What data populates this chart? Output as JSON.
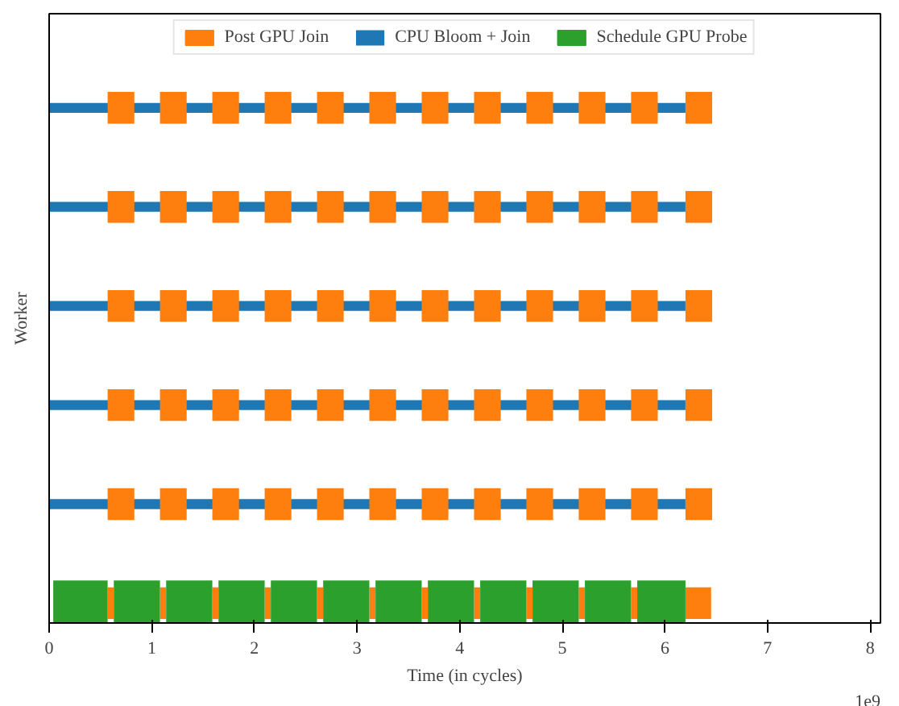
{
  "chart_data": {
    "type": "bar",
    "orientation": "horizontal",
    "xlabel": "Time (in cycles)",
    "ylabel": "Worker",
    "categories": [
      null,
      null,
      null,
      null,
      null,
      null
    ],
    "xlim": [
      0,
      8.1
    ],
    "xticks": [
      0,
      1,
      2,
      3,
      4,
      5,
      6,
      7,
      8
    ],
    "tick_labels": "x",
    "grid": false,
    "legend": "top",
    "annotations": [
      "1e9"
    ],
    "series": [
      {
        "name": "Post GPU Join",
        "color": "#ff7f0e",
        "base": [
          0.57,
          0.57,
          0.57,
          0.57,
          0.57,
          0.57
        ],
        "values": [
          0.26,
          0.26,
          0.26,
          0.26,
          0.26,
          0.06
        ]
      },
      {
        "color": "#ff7f0e",
        "base": [
          1.08,
          1.08,
          1.08,
          1.08,
          1.08,
          1.08
        ],
        "values": [
          0.26,
          0.26,
          0.26,
          0.26,
          0.26,
          0.06
        ]
      },
      {
        "color": "#ff7f0e",
        "base": [
          1.59,
          1.59,
          1.59,
          1.59,
          1.59,
          1.59
        ],
        "values": [
          0.26,
          0.26,
          0.26,
          0.26,
          0.26,
          0.06
        ]
      },
      {
        "color": "#ff7f0e",
        "base": [
          2.1,
          2.1,
          2.1,
          2.1,
          2.1,
          2.1
        ],
        "values": [
          0.26,
          0.26,
          0.26,
          0.26,
          0.26,
          0.06
        ]
      },
      {
        "color": "#ff7f0e",
        "base": [
          2.61,
          2.61,
          2.61,
          2.61,
          2.61,
          2.61
        ],
        "values": [
          0.26,
          0.26,
          0.26,
          0.26,
          0.26,
          0.06
        ]
      },
      {
        "color": "#ff7f0e",
        "base": [
          3.12,
          3.12,
          3.12,
          3.12,
          3.12,
          3.12
        ],
        "values": [
          0.26,
          0.26,
          0.26,
          0.26,
          0.26,
          0.06
        ]
      },
      {
        "color": "#ff7f0e",
        "base": [
          3.63,
          3.63,
          3.63,
          3.63,
          3.63,
          3.63
        ],
        "values": [
          0.26,
          0.26,
          0.26,
          0.26,
          0.26,
          0.06
        ]
      },
      {
        "color": "#ff7f0e",
        "base": [
          4.14,
          4.14,
          4.14,
          4.14,
          4.14,
          4.14
        ],
        "values": [
          0.26,
          0.26,
          0.26,
          0.26,
          0.26,
          0.06
        ]
      },
      {
        "color": "#ff7f0e",
        "base": [
          4.65,
          4.65,
          4.65,
          4.65,
          4.65,
          4.65
        ],
        "values": [
          0.26,
          0.26,
          0.26,
          0.26,
          0.26,
          0.06
        ]
      },
      {
        "color": "#ff7f0e",
        "base": [
          5.16,
          5.16,
          5.16,
          5.16,
          5.16,
          5.16
        ],
        "values": [
          0.26,
          0.26,
          0.26,
          0.26,
          0.26,
          0.06
        ]
      },
      {
        "color": "#ff7f0e",
        "base": [
          5.67,
          5.67,
          5.67,
          5.67,
          5.67,
          5.67
        ],
        "values": [
          0.26,
          0.26,
          0.26,
          0.26,
          0.26,
          0.06
        ]
      },
      {
        "color": "#ff7f0e",
        "base": [
          6.2,
          6.2,
          6.2,
          6.2,
          6.2,
          6.2
        ],
        "values": [
          0.26,
          0.26,
          0.26,
          0.26,
          0.26,
          0.25
        ]
      },
      {
        "name": "CPU Bloom + Join",
        "color": "#1f77b4",
        "base": [
          0,
          0,
          0,
          0,
          0,
          null
        ],
        "values": [
          6.2,
          6.2,
          6.2,
          6.2,
          6.2,
          null
        ]
      },
      {
        "name": "Schedule GPU Probe",
        "color": "#2ca02c",
        "base": [
          null,
          null,
          null,
          null,
          null,
          0.04
        ],
        "values": [
          null,
          null,
          null,
          null,
          null,
          0.53
        ]
      },
      {
        "color": "#2ca02c",
        "base": [
          null,
          null,
          null,
          null,
          null,
          0.63
        ],
        "values": [
          null,
          null,
          null,
          null,
          null,
          0.45
        ]
      },
      {
        "color": "#2ca02c",
        "base": [
          null,
          null,
          null,
          null,
          null,
          1.14
        ],
        "values": [
          null,
          null,
          null,
          null,
          null,
          0.45
        ]
      },
      {
        "color": "#2ca02c",
        "base": [
          null,
          null,
          null,
          null,
          null,
          1.65
        ],
        "values": [
          null,
          null,
          null,
          null,
          null,
          0.45
        ]
      },
      {
        "color": "#2ca02c",
        "base": [
          null,
          null,
          null,
          null,
          null,
          2.16
        ],
        "values": [
          null,
          null,
          null,
          null,
          null,
          0.45
        ]
      },
      {
        "color": "#2ca02c",
        "base": [
          null,
          null,
          null,
          null,
          null,
          2.67
        ],
        "values": [
          null,
          null,
          null,
          null,
          null,
          0.45
        ]
      },
      {
        "color": "#2ca02c",
        "base": [
          null,
          null,
          null,
          null,
          null,
          3.18
        ],
        "values": [
          null,
          null,
          null,
          null,
          null,
          0.45
        ]
      },
      {
        "color": "#2ca02c",
        "base": [
          null,
          null,
          null,
          null,
          null,
          3.69
        ],
        "values": [
          null,
          null,
          null,
          null,
          null,
          0.45
        ]
      },
      {
        "color": "#2ca02c",
        "base": [
          null,
          null,
          null,
          null,
          null,
          4.2
        ],
        "values": [
          null,
          null,
          null,
          null,
          null,
          0.45
        ]
      },
      {
        "color": "#2ca02c",
        "base": [
          null,
          null,
          null,
          null,
          null,
          4.71
        ],
        "values": [
          null,
          null,
          null,
          null,
          null,
          0.45
        ]
      },
      {
        "color": "#2ca02c",
        "base": [
          null,
          null,
          null,
          null,
          null,
          5.22
        ],
        "values": [
          null,
          null,
          null,
          null,
          null,
          0.45
        ]
      },
      {
        "color": "#2ca02c",
        "base": [
          null,
          null,
          null,
          null,
          null,
          5.73
        ],
        "values": [
          null,
          null,
          null,
          null,
          null,
          0.47
        ]
      }
    ]
  }
}
